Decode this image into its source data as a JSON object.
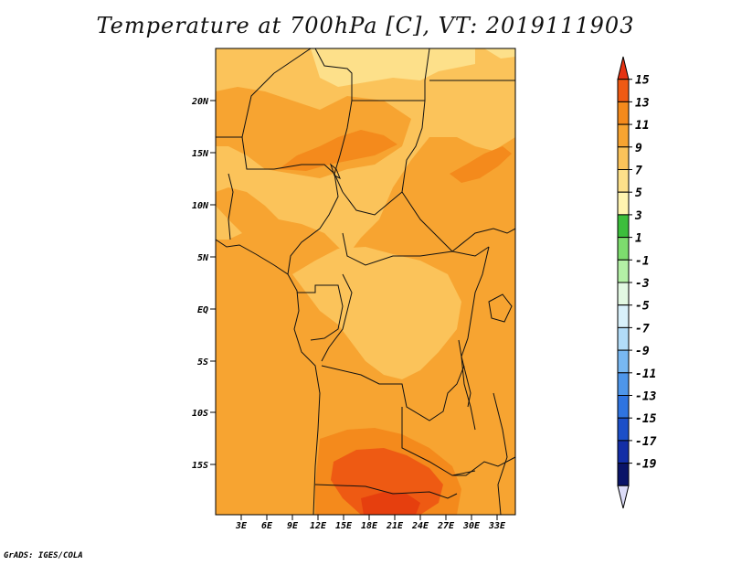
{
  "title": "Temperature at 700hPa [C], VT: 2019111903",
  "credit": "GrADS: IGES/COLA",
  "map": {
    "lat_ticks": [
      "20N",
      "15N",
      "10N",
      "5N",
      "EQ",
      "5S",
      "10S",
      "15S"
    ],
    "lon_ticks": [
      "3E",
      "6E",
      "9E",
      "12E",
      "15E",
      "18E",
      "21E",
      "24E",
      "27E",
      "30E",
      "33E"
    ],
    "field_colors": {
      "light": "#fde08a",
      "pale": "#fbc35a",
      "mid": "#f7a431",
      "warm": "#f48a1c",
      "hot": "#ee5a13",
      "hottest": "#e63f0e"
    }
  },
  "colorbar": {
    "labels": [
      "15",
      "13",
      "11",
      "9",
      "7",
      "5",
      "3",
      "1",
      "-1",
      "-3",
      "-5",
      "-7",
      "-9",
      "-11",
      "-13",
      "-15",
      "-17",
      "-19"
    ],
    "colors": [
      "#e63212",
      "#ef5a13",
      "#f48a1c",
      "#f7a431",
      "#fbc35a",
      "#fde08a",
      "#fff4b0",
      "#3cbe3c",
      "#7ddc6e",
      "#b4f0a6",
      "#e2f8e2",
      "#d8f0fa",
      "#b2dcf8",
      "#78b8f2",
      "#4e96ea",
      "#2f74e0",
      "#1c4fc8",
      "#132ea6",
      "#0a1468",
      "#dcdcf8"
    ]
  }
}
